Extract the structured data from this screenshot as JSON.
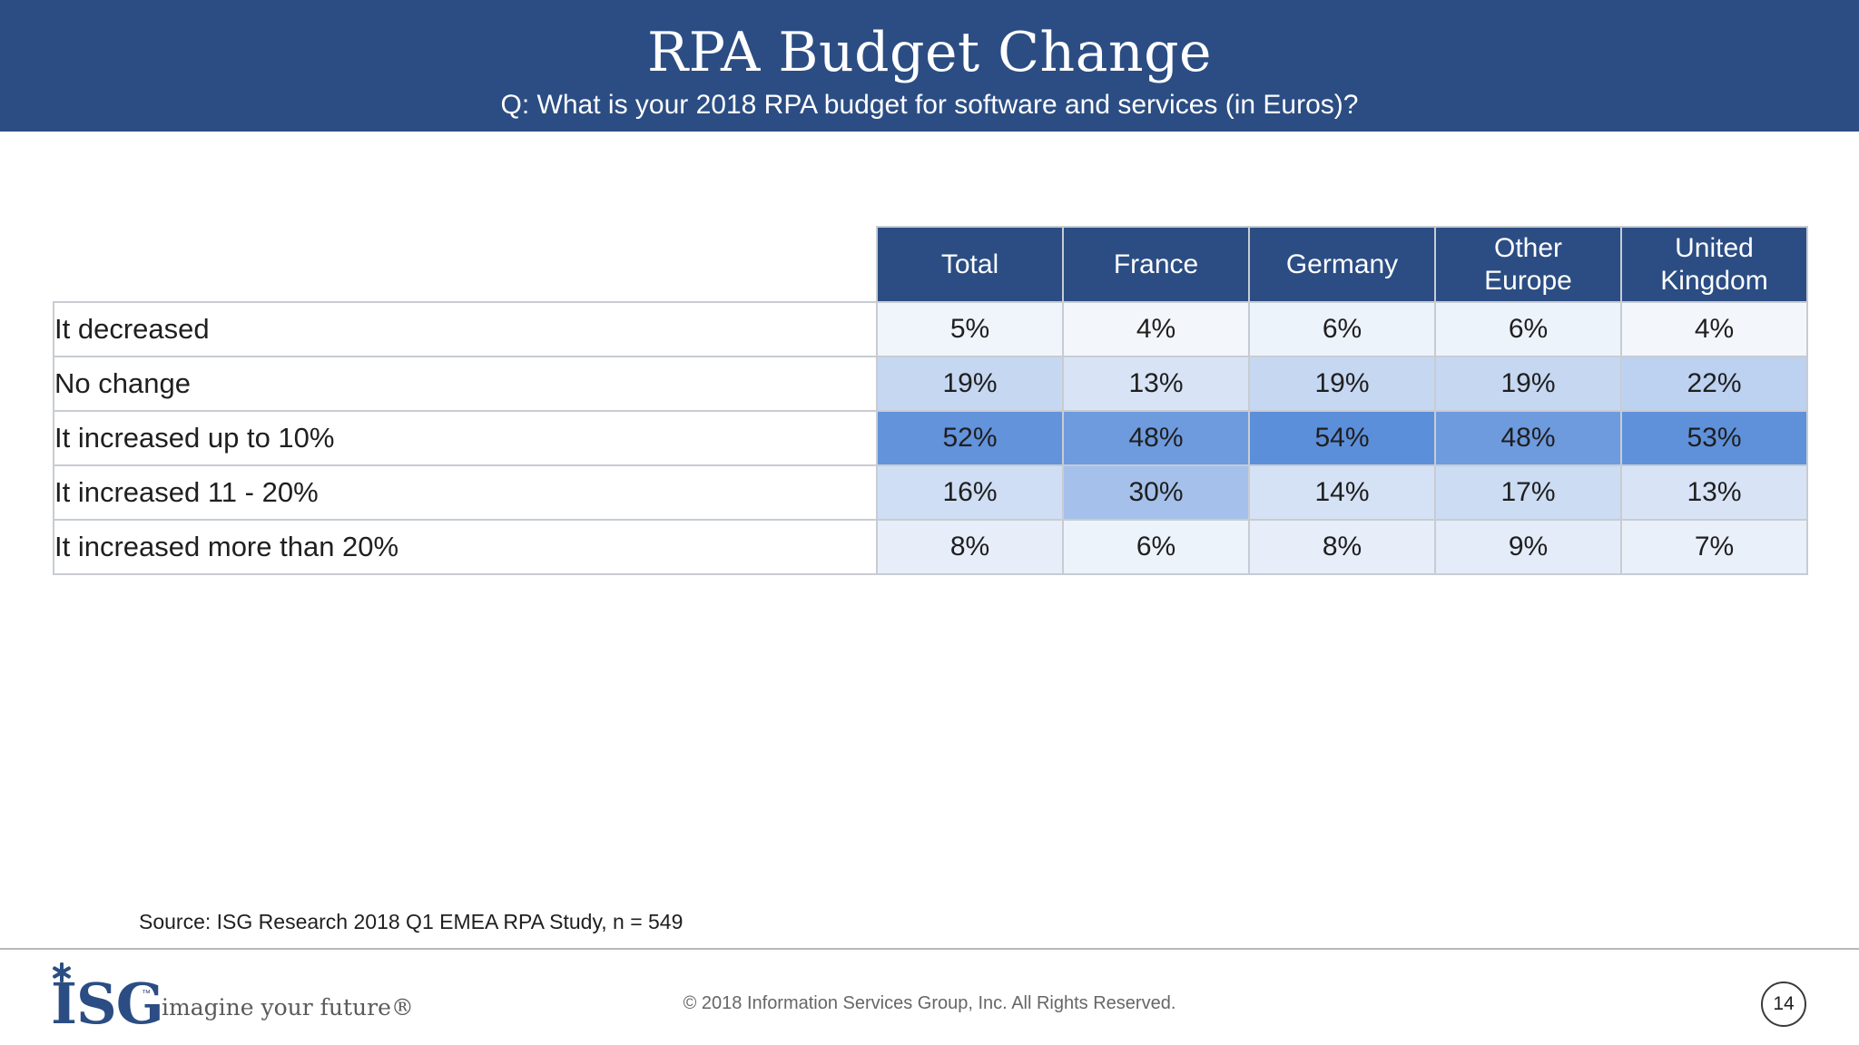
{
  "header": {
    "title": "RPA Budget Change",
    "subtitle": "Q: What is your 2018 RPA budget for software and services (in Euros)?"
  },
  "chart_data": {
    "type": "table",
    "title": "RPA Budget Change",
    "subtitle": "Q: What is your 2018 RPA budget for software and services (in Euros)?",
    "columns": [
      "Total",
      "France",
      "Germany",
      "Other\nEurope",
      "United\nKingdom"
    ],
    "rows": [
      {
        "label": "It decreased",
        "values": [
          5,
          4,
          6,
          6,
          4
        ]
      },
      {
        "label": "No change",
        "values": [
          19,
          13,
          19,
          19,
          22
        ]
      },
      {
        "label": "It increased up to 10%",
        "values": [
          52,
          48,
          54,
          48,
          53
        ]
      },
      {
        "label": "It increased 11 - 20%",
        "values": [
          16,
          30,
          14,
          17,
          13
        ]
      },
      {
        "label": "It increased more than 20%",
        "values": [
          8,
          6,
          8,
          9,
          7
        ]
      }
    ],
    "value_suffix": "%",
    "heat_color_low": "#ffffff",
    "heat_color_high": "#4a82d6",
    "heat_range": [
      0,
      60
    ]
  },
  "footer": {
    "source": "Source: ISG Research 2018 Q1 EMEA RPA Study, n = 549",
    "logo_text": "ISG",
    "logo_tm": "™",
    "tagline": "imagine your future®",
    "copyright": "© 2018 Information Services Group, Inc.  All Rights Reserved.",
    "page_number": "14"
  },
  "colors": {
    "brand_blue": "#2b4d83",
    "grid_border": "#c8ccd2"
  }
}
